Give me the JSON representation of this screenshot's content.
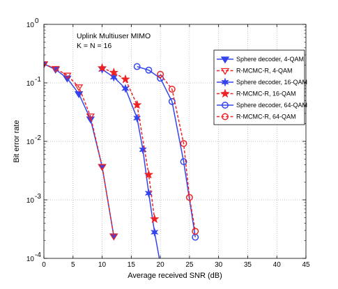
{
  "chart_data": {
    "type": "line",
    "title": "",
    "xlabel": "Average received SNR (dB)",
    "ylabel": "Bit error rate",
    "xlim": [
      0,
      45
    ],
    "ylim": [
      0.0001,
      1
    ],
    "yscale": "log",
    "grid": true,
    "legend_position": "right",
    "annotations": [
      "Uplink Multiuser MIMO",
      "K = N = 16"
    ],
    "x_ticks": [
      "0",
      "5",
      "10",
      "15",
      "20",
      "25",
      "30",
      "35",
      "40",
      "45"
    ],
    "y_ticks": [
      {
        "base": "10",
        "exp": "0",
        "value": 1
      },
      {
        "base": "10",
        "exp": "-1",
        "value": 0.1
      },
      {
        "base": "10",
        "exp": "-2",
        "value": 0.01
      },
      {
        "base": "10",
        "exp": "-3",
        "value": 0.001
      },
      {
        "base": "10",
        "exp": "-4",
        "value": 0.0001
      }
    ],
    "series": [
      {
        "name": "Sphere decoder, 4-QAM",
        "color": "#3344ee",
        "line": "solid",
        "marker": "tri-down-filled",
        "x": [
          0,
          2,
          4,
          6,
          8,
          10,
          12
        ],
        "y": [
          0.21,
          0.17,
          0.12,
          0.065,
          0.024,
          0.0037,
          0.00024
        ]
      },
      {
        "name": "R-MCMC-R, 4-QAM",
        "color": "#ee2222",
        "line": "dashed",
        "marker": "tri-down-open",
        "x": [
          0,
          2,
          4,
          6,
          8,
          10,
          12
        ],
        "y": [
          0.21,
          0.175,
          0.135,
          0.085,
          0.027,
          0.0037,
          0.00024
        ]
      },
      {
        "name": "Sphere decoder, 16-QAM",
        "color": "#3344ee",
        "line": "solid",
        "marker": "star6",
        "x": [
          10,
          12,
          14,
          16,
          17,
          18,
          19,
          20
        ],
        "y": [
          0.17,
          0.125,
          0.08,
          0.025,
          0.0072,
          0.0013,
          0.00028,
          8e-05
        ]
      },
      {
        "name": "R-MCMC-R, 16-QAM",
        "color": "#ee2222",
        "line": "dashed",
        "marker": "star5",
        "x": [
          10,
          12,
          14,
          16,
          18,
          19
        ],
        "y": [
          0.18,
          0.15,
          0.115,
          0.042,
          0.0027,
          0.00047
        ]
      },
      {
        "name": "Sphere decoder, 64-QAM",
        "color": "#3344ee",
        "line": "solid",
        "marker": "circle",
        "x": [
          16,
          18,
          20,
          22,
          24,
          26
        ],
        "y": [
          0.19,
          0.165,
          0.12,
          0.048,
          0.0045,
          0.00023
        ]
      },
      {
        "name": "R-MCMC-R, 64-QAM",
        "color": "#ee2222",
        "line": "dashed",
        "marker": "circle",
        "x": [
          20,
          22,
          24,
          25,
          26
        ],
        "y": [
          0.14,
          0.078,
          0.0092,
          0.0011,
          0.00029
        ]
      }
    ]
  }
}
